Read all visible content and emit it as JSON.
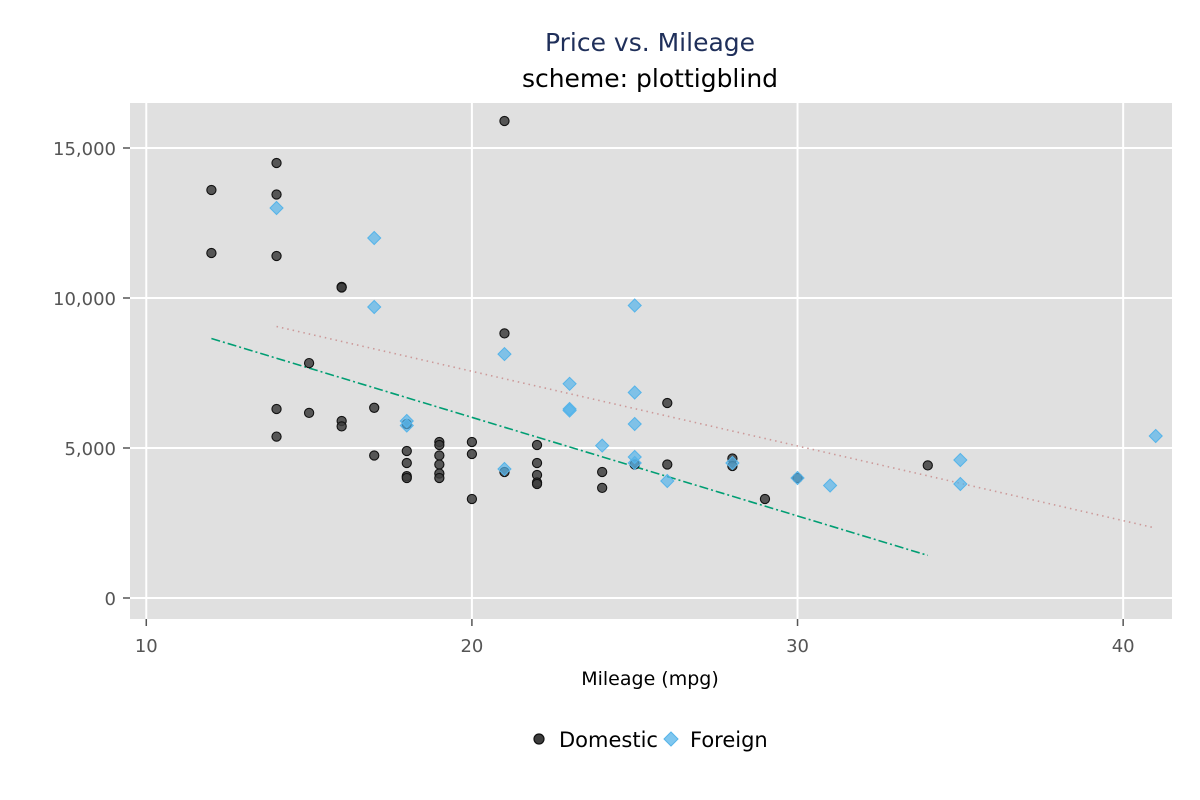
{
  "chart_data": {
    "type": "scatter",
    "title": "Price vs. Mileage",
    "subtitle": "scheme: plottigblind",
    "xlabel": "Mileage (mpg)",
    "ylabel": "",
    "xlim": [
      9.5,
      41.5
    ],
    "ylim": [
      -700,
      16500
    ],
    "x_ticks": [
      10,
      20,
      30,
      40
    ],
    "y_ticks": [
      0,
      5000,
      10000,
      15000
    ],
    "x_tick_labels": [
      "10",
      "20",
      "30",
      "40"
    ],
    "y_tick_labels": [
      "0",
      "5,000",
      "10,000",
      "15,000"
    ],
    "grid": true,
    "legend_position": "bottom",
    "series": [
      {
        "name": "Domestic",
        "marker": "circle",
        "color": "#3d3d3d",
        "points": [
          [
            12,
            13600
          ],
          [
            12,
            11500
          ],
          [
            14,
            14500
          ],
          [
            14,
            13450
          ],
          [
            14,
            11400
          ],
          [
            14,
            6300
          ],
          [
            14,
            5380
          ],
          [
            15,
            7830
          ],
          [
            15,
            6170
          ],
          [
            16,
            10370
          ],
          [
            16,
            10350
          ],
          [
            16,
            5900
          ],
          [
            16,
            5720
          ],
          [
            17,
            6340
          ],
          [
            17,
            4750
          ],
          [
            18,
            4900
          ],
          [
            18,
            4500
          ],
          [
            18,
            4060
          ],
          [
            18,
            4000
          ],
          [
            18,
            5800
          ],
          [
            19,
            5200
          ],
          [
            19,
            5100
          ],
          [
            19,
            4750
          ],
          [
            19,
            4450
          ],
          [
            19,
            4150
          ],
          [
            19,
            4000
          ],
          [
            20,
            5200
          ],
          [
            20,
            4800
          ],
          [
            20,
            3300
          ],
          [
            21,
            15900
          ],
          [
            21,
            8820
          ],
          [
            21,
            4200
          ],
          [
            22,
            5100
          ],
          [
            22,
            4500
          ],
          [
            22,
            4100
          ],
          [
            22,
            3850
          ],
          [
            22,
            3800
          ],
          [
            24,
            4200
          ],
          [
            24,
            3670
          ],
          [
            25,
            4450
          ],
          [
            26,
            6500
          ],
          [
            26,
            4450
          ],
          [
            28,
            4650
          ],
          [
            28,
            4400
          ],
          [
            29,
            3300
          ],
          [
            30,
            4000
          ],
          [
            34,
            4420
          ]
        ]
      },
      {
        "name": "Foreign",
        "marker": "diamond",
        "color": "#56b4e9",
        "points": [
          [
            14,
            13000
          ],
          [
            17,
            12000
          ],
          [
            17,
            9700
          ],
          [
            18,
            5900
          ],
          [
            18,
            5750
          ],
          [
            21,
            8130
          ],
          [
            21,
            4300
          ],
          [
            23,
            7140
          ],
          [
            23,
            6300
          ],
          [
            23,
            6250
          ],
          [
            24,
            5080
          ],
          [
            25,
            9750
          ],
          [
            25,
            6850
          ],
          [
            25,
            5800
          ],
          [
            25,
            4700
          ],
          [
            25,
            4500
          ],
          [
            26,
            3900
          ],
          [
            28,
            4500
          ],
          [
            30,
            4000
          ],
          [
            31,
            3750
          ],
          [
            35,
            4600
          ],
          [
            35,
            3800
          ],
          [
            41,
            5400
          ]
        ]
      }
    ],
    "fit_lines": [
      {
        "name": "Domestic fit",
        "style": "dash-dot",
        "color": "#009e73",
        "x": [
          12,
          34
        ],
        "y": [
          8650,
          1420
        ]
      },
      {
        "name": "Foreign fit",
        "style": "dotted",
        "color": "#cc9999",
        "x": [
          14,
          41
        ],
        "y": [
          9050,
          2330
        ]
      }
    ]
  }
}
